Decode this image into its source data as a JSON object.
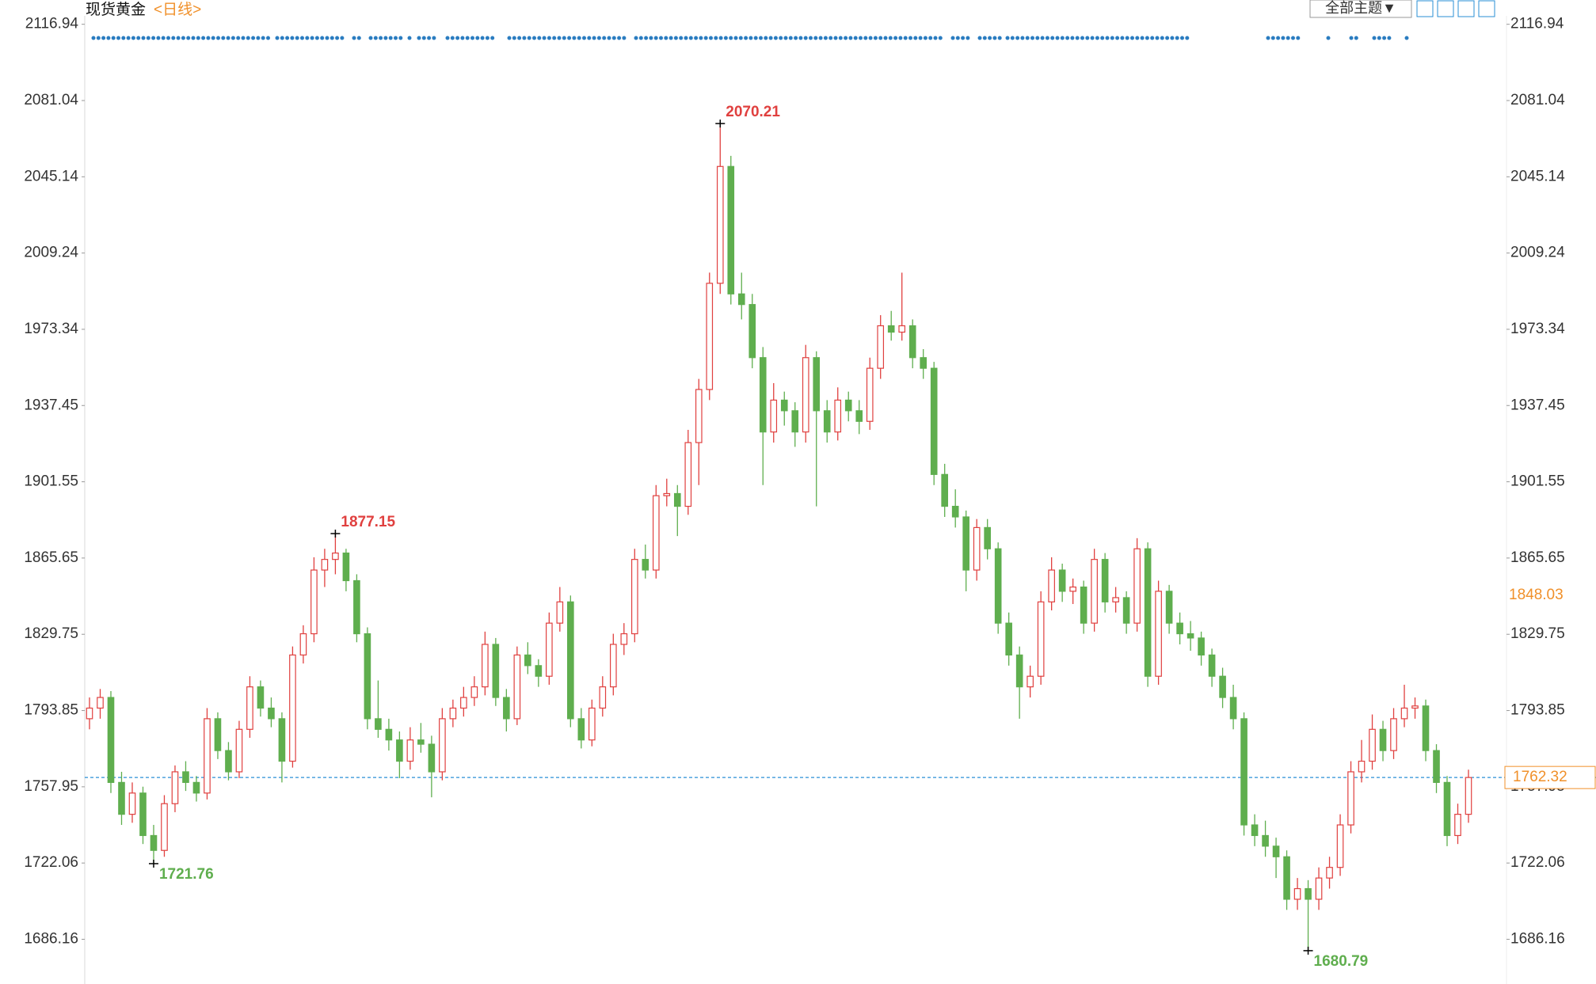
{
  "title": "现货黄金",
  "subtitle": "<日线>",
  "toolbar": {
    "button": "全部主题▼"
  },
  "chart_data": {
    "type": "candlestick",
    "up_color": "#e0403f",
    "down_color": "#5fae4e",
    "ylim": [
      1665.1,
      2119.8
    ],
    "yticks": [
      1686.16,
      1722.06,
      1757.95,
      1793.85,
      1829.75,
      1865.65,
      1901.55,
      1937.45,
      1973.34,
      2009.24,
      2045.14,
      2081.04,
      2116.94
    ],
    "ohlc": [
      [
        1790,
        1800,
        1785,
        1795
      ],
      [
        1795,
        1804,
        1790,
        1800
      ],
      [
        1800,
        1803,
        1755,
        1760
      ],
      [
        1760,
        1765,
        1740,
        1745
      ],
      [
        1745,
        1760,
        1741,
        1755
      ],
      [
        1755,
        1758,
        1731,
        1735
      ],
      [
        1735,
        1740,
        1721.76,
        1728
      ],
      [
        1728,
        1754,
        1725,
        1750
      ],
      [
        1750,
        1768,
        1746,
        1765
      ],
      [
        1765,
        1770,
        1756,
        1760
      ],
      [
        1760,
        1763,
        1751,
        1755
      ],
      [
        1755,
        1795,
        1752,
        1790
      ],
      [
        1790,
        1793,
        1771,
        1775
      ],
      [
        1775,
        1779,
        1761,
        1765
      ],
      [
        1765,
        1789,
        1762,
        1785
      ],
      [
        1785,
        1810,
        1781,
        1805
      ],
      [
        1805,
        1808,
        1791,
        1795
      ],
      [
        1795,
        1800,
        1786,
        1790
      ],
      [
        1790,
        1793,
        1760,
        1770
      ],
      [
        1770,
        1824,
        1767,
        1820
      ],
      [
        1820,
        1834,
        1816,
        1830
      ],
      [
        1830,
        1866,
        1826,
        1860
      ],
      [
        1860,
        1870,
        1852,
        1865
      ],
      [
        1865,
        1877.15,
        1858,
        1868
      ],
      [
        1868,
        1870,
        1850,
        1855
      ],
      [
        1855,
        1858,
        1826,
        1830
      ],
      [
        1830,
        1833,
        1785,
        1790
      ],
      [
        1790,
        1808,
        1781,
        1785
      ],
      [
        1785,
        1790,
        1775,
        1780
      ],
      [
        1780,
        1784,
        1762,
        1770
      ],
      [
        1770,
        1786,
        1766,
        1780
      ],
      [
        1780,
        1788,
        1774,
        1778
      ],
      [
        1778,
        1782,
        1753,
        1765
      ],
      [
        1765,
        1795,
        1761,
        1790
      ],
      [
        1790,
        1799,
        1786,
        1795
      ],
      [
        1795,
        1805,
        1791,
        1800
      ],
      [
        1800,
        1810,
        1796,
        1805
      ],
      [
        1805,
        1831,
        1801,
        1825
      ],
      [
        1825,
        1828,
        1796,
        1800
      ],
      [
        1800,
        1804,
        1784,
        1790
      ],
      [
        1790,
        1824,
        1787,
        1820
      ],
      [
        1820,
        1826,
        1811,
        1815
      ],
      [
        1815,
        1818,
        1805,
        1810
      ],
      [
        1810,
        1840,
        1806,
        1835
      ],
      [
        1835,
        1852,
        1831,
        1845
      ],
      [
        1845,
        1848,
        1786,
        1790
      ],
      [
        1790,
        1795,
        1776,
        1780
      ],
      [
        1780,
        1799,
        1777,
        1795
      ],
      [
        1795,
        1810,
        1791,
        1805
      ],
      [
        1805,
        1830,
        1801,
        1825
      ],
      [
        1825,
        1835,
        1820,
        1830
      ],
      [
        1830,
        1870,
        1826,
        1865
      ],
      [
        1865,
        1872,
        1856,
        1860
      ],
      [
        1860,
        1900,
        1856,
        1895
      ],
      [
        1895,
        1903,
        1890,
        1896
      ],
      [
        1896,
        1900,
        1876,
        1890
      ],
      [
        1890,
        1926,
        1886,
        1920
      ],
      [
        1920,
        1950,
        1900,
        1945
      ],
      [
        1945,
        2000,
        1940,
        1995
      ],
      [
        1995,
        2070.21,
        1990,
        2050
      ],
      [
        2050,
        2055,
        1985,
        1990
      ],
      [
        1990,
        2000,
        1978,
        1985
      ],
      [
        1985,
        1990,
        1955,
        1960
      ],
      [
        1960,
        1965,
        1900,
        1925
      ],
      [
        1925,
        1948,
        1920,
        1940
      ],
      [
        1940,
        1944,
        1928,
        1935
      ],
      [
        1935,
        1939,
        1918,
        1925
      ],
      [
        1925,
        1966,
        1920,
        1960
      ],
      [
        1960,
        1963,
        1890,
        1935
      ],
      [
        1935,
        1940,
        1920,
        1925
      ],
      [
        1925,
        1946,
        1921,
        1940
      ],
      [
        1940,
        1944,
        1930,
        1935
      ],
      [
        1935,
        1940,
        1924,
        1930
      ],
      [
        1930,
        1960,
        1926,
        1955
      ],
      [
        1955,
        1980,
        1950,
        1975
      ],
      [
        1975,
        1982,
        1968,
        1972
      ],
      [
        1972,
        2000,
        1968,
        1975
      ],
      [
        1975,
        1978,
        1955,
        1960
      ],
      [
        1960,
        1964,
        1950,
        1955
      ],
      [
        1955,
        1958,
        1900,
        1905
      ],
      [
        1905,
        1910,
        1885,
        1890
      ],
      [
        1890,
        1898,
        1880,
        1885
      ],
      [
        1885,
        1888,
        1850,
        1860
      ],
      [
        1860,
        1884,
        1855,
        1880
      ],
      [
        1880,
        1884,
        1865,
        1870
      ],
      [
        1870,
        1873,
        1830,
        1835
      ],
      [
        1835,
        1840,
        1815,
        1820
      ],
      [
        1820,
        1824,
        1790,
        1805
      ],
      [
        1805,
        1815,
        1800,
        1810
      ],
      [
        1810,
        1850,
        1806,
        1845
      ],
      [
        1845,
        1866,
        1841,
        1860
      ],
      [
        1860,
        1863,
        1845,
        1850
      ],
      [
        1850,
        1856,
        1844,
        1852
      ],
      [
        1852,
        1855,
        1830,
        1835
      ],
      [
        1835,
        1870,
        1831,
        1865
      ],
      [
        1865,
        1868,
        1840,
        1845
      ],
      [
        1845,
        1852,
        1840,
        1847
      ],
      [
        1847,
        1850,
        1830,
        1835
      ],
      [
        1835,
        1875,
        1831,
        1870
      ],
      [
        1870,
        1873,
        1805,
        1810
      ],
      [
        1810,
        1855,
        1806,
        1850
      ],
      [
        1850,
        1853,
        1830,
        1835
      ],
      [
        1835,
        1840,
        1825,
        1830
      ],
      [
        1830,
        1836,
        1822,
        1828
      ],
      [
        1828,
        1831,
        1815,
        1820
      ],
      [
        1820,
        1823,
        1805,
        1810
      ],
      [
        1810,
        1814,
        1795,
        1800
      ],
      [
        1800,
        1806,
        1785,
        1790
      ],
      [
        1790,
        1793,
        1735,
        1740
      ],
      [
        1740,
        1745,
        1730,
        1735
      ],
      [
        1735,
        1742,
        1725,
        1730
      ],
      [
        1730,
        1734,
        1715,
        1725
      ],
      [
        1725,
        1728,
        1700,
        1705
      ],
      [
        1705,
        1715,
        1700,
        1710
      ],
      [
        1710,
        1714,
        1680.79,
        1705
      ],
      [
        1705,
        1720,
        1700,
        1715
      ],
      [
        1715,
        1725,
        1710,
        1720
      ],
      [
        1720,
        1745,
        1716,
        1740
      ],
      [
        1740,
        1770,
        1736,
        1765
      ],
      [
        1765,
        1780,
        1760,
        1770
      ],
      [
        1770,
        1792,
        1766,
        1785
      ],
      [
        1785,
        1789,
        1770,
        1775
      ],
      [
        1775,
        1795,
        1771,
        1790
      ],
      [
        1790,
        1806,
        1786,
        1795
      ],
      [
        1795,
        1800,
        1790,
        1796
      ],
      [
        1796,
        1799,
        1770,
        1775
      ],
      [
        1775,
        1778,
        1755,
        1760
      ],
      [
        1760,
        1763,
        1730,
        1735
      ],
      [
        1735,
        1750,
        1731,
        1745
      ],
      [
        1745,
        1766,
        1741,
        1762.32
      ]
    ],
    "annotations": [
      {
        "value": 2070.21,
        "at": "high",
        "color": "#e0403f"
      },
      {
        "value": 1877.15,
        "at": "high",
        "color": "#e0403f"
      },
      {
        "value": 1721.76,
        "at": "low",
        "color": "#5fae4e"
      },
      {
        "value": 1680.79,
        "at": "low",
        "color": "#5fae4e"
      }
    ],
    "last_price": {
      "value": 1762.32,
      "color": "#f0902a",
      "line_color": "#2a8fd6"
    },
    "marker_price": {
      "value": 1848.03,
      "color": "#f0902a"
    }
  }
}
